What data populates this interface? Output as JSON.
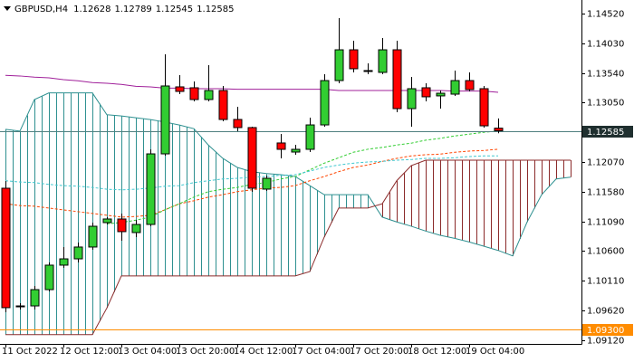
{
  "chart_data": {
    "type": "candlestick",
    "title": "GBPUSD,H4",
    "title_values": [
      1.12628,
      1.12789,
      1.12545,
      1.12585
    ],
    "categories": [
      "11 Oct 2022",
      null,
      null,
      null,
      "12 Oct 12:00",
      null,
      null,
      null,
      "13 Oct 04:00",
      null,
      null,
      null,
      "13 Oct 20:00",
      null,
      null,
      null,
      "14 Oct 12:00",
      null,
      null,
      null,
      "17 Oct 04:00",
      null,
      null,
      null,
      "17 Oct 20:00",
      null,
      null,
      null,
      "18 Oct 12:00",
      null,
      null,
      null,
      "19 Oct 04:00",
      null,
      null,
      null,
      null,
      null,
      null,
      null
    ],
    "open": [
      1.11637,
      1.09694,
      1.09694,
      1.09963,
      1.10367,
      1.10471,
      1.10666,
      1.11069,
      1.11129,
      1.10905,
      1.11039,
      1.12204,
      1.1331,
      1.13295,
      1.13101,
      1.1325,
      1.12772,
      1.12638,
      1.11622,
      1.12384,
      1.12234,
      1.12279,
      1.12682,
      1.13414,
      1.13922,
      1.13579,
      1.13549,
      1.13922,
      1.12951,
      1.13295,
      1.13161,
      1.1319,
      1.13414,
      1.1328,
      1.12628,
      null,
      null,
      null,
      null,
      null
    ],
    "high": [
      1.11756,
      1.09739,
      1.10023,
      1.10412,
      1.10666,
      1.1074,
      1.11069,
      1.11159,
      1.11218,
      1.11114,
      1.12279,
      1.13848,
      1.13504,
      1.134,
      1.13668,
      1.13325,
      1.12981,
      1.12653,
      1.11846,
      1.12533,
      1.12354,
      1.12802,
      1.13519,
      1.14445,
      1.14072,
      1.13698,
      1.14117,
      1.14072,
      1.13474,
      1.1337,
      1.1325,
      1.13579,
      1.13549,
      1.13325,
      1.12789,
      null,
      null,
      null,
      null,
      null
    ],
    "low": [
      1.0959,
      1.09635,
      1.09635,
      1.09933,
      1.10322,
      1.10412,
      1.10621,
      1.11039,
      1.1077,
      1.1083,
      1.11009,
      1.12174,
      1.1319,
      1.13071,
      1.13071,
      1.12742,
      1.12578,
      1.11577,
      1.11592,
      1.1213,
      1.12189,
      1.12234,
      1.12653,
      1.1337,
      1.13549,
      1.13519,
      1.13519,
      1.12892,
      1.12653,
      1.13071,
      1.12951,
      1.13161,
      1.13235,
      1.12638,
      1.12545,
      null,
      null,
      null,
      null,
      null
    ],
    "close": [
      1.09665,
      1.09694,
      1.09963,
      1.10367,
      1.10471,
      1.10666,
      1.11009,
      1.11129,
      1.1092,
      1.11039,
      1.12204,
      1.13325,
      1.13235,
      1.13101,
      1.1325,
      1.12772,
      1.12638,
      1.11637,
      1.11801,
      1.12279,
      1.12279,
      1.12682,
      1.13414,
      1.13922,
      1.13609,
      1.13579,
      1.13922,
      1.12951,
      1.1328,
      1.13146,
      1.13205,
      1.13414,
      1.13265,
      1.12667,
      1.12585,
      null,
      null,
      null,
      null,
      null
    ],
    "up_color": "#32cd32",
    "down_color": "#ff0000",
    "overlays": [
      {
        "color": "#a0209a",
        "dashed": false,
        "values": [
          1.135,
          1.1349,
          1.1347,
          1.1346,
          1.1343,
          1.1341,
          1.1338,
          1.1337,
          1.1335,
          1.1332,
          1.1331,
          1.1329,
          1.1329,
          1.1328,
          1.1328,
          1.1328,
          1.1327,
          1.1327,
          1.1327,
          1.1327,
          1.1327,
          1.1327,
          1.1327,
          1.1325,
          1.1325,
          1.1325,
          1.1325,
          1.1325,
          1.1325,
          1.1325,
          1.1325,
          1.1324,
          1.1324,
          1.1324,
          1.1322,
          null,
          null,
          null,
          null,
          null
        ]
      },
      {
        "color": "#ff4500",
        "dashed": true,
        "values": [
          1.1138,
          1.1135,
          1.1134,
          1.1131,
          1.1128,
          1.1125,
          1.1122,
          1.1119,
          1.1116,
          1.1117,
          1.1119,
          1.1128,
          1.1138,
          1.1143,
          1.1149,
          1.1153,
          1.1158,
          1.1161,
          1.1164,
          1.1165,
          1.1168,
          1.1176,
          1.1183,
          1.1191,
          1.1198,
          1.1202,
          1.1208,
          1.1213,
          1.1217,
          1.1219,
          1.122,
          1.1223,
          1.1225,
          1.1226,
          1.1228,
          null,
          null,
          null,
          null,
          null
        ]
      },
      {
        "color": "#32cd32",
        "dashed": true,
        "values": [
          null,
          null,
          null,
          null,
          null,
          null,
          null,
          1.1105,
          1.1107,
          1.1111,
          1.1116,
          1.1128,
          1.1138,
          1.1149,
          1.1158,
          1.1162,
          1.1165,
          1.117,
          1.1173,
          1.1179,
          1.1183,
          1.1194,
          1.1205,
          1.1214,
          1.1223,
          1.1228,
          1.1231,
          1.1235,
          1.1238,
          1.1243,
          1.1246,
          1.125,
          1.1253,
          1.1256,
          1.1258,
          null,
          null,
          null,
          null,
          null
        ]
      },
      {
        "color": "#40c8d0",
        "dashed": true,
        "values": [
          1.1176,
          1.1174,
          1.1173,
          1.117,
          1.1168,
          1.1167,
          1.1165,
          1.1162,
          1.1161,
          1.1162,
          1.1164,
          1.1167,
          1.1168,
          1.1173,
          1.1176,
          1.1179,
          1.118,
          1.1182,
          1.1183,
          1.1185,
          1.1186,
          1.1192,
          1.1198,
          1.1202,
          1.1205,
          1.1207,
          1.1208,
          1.121,
          1.1211,
          1.1213,
          1.1213,
          1.1214,
          1.1216,
          1.1217,
          1.1217,
          null,
          null,
          null,
          null,
          null
        ]
      }
    ],
    "cloud": {
      "span_a": {
        "color": "#2e9090",
        "values": [
          1.1261,
          1.1258,
          1.131,
          1.1321,
          1.1321,
          1.1321,
          1.1321,
          1.1285,
          1.1283,
          1.128,
          1.1277,
          1.1273,
          1.1268,
          1.1262,
          1.1235,
          1.1213,
          1.1198,
          1.1191,
          1.1188,
          1.1186,
          1.1183,
          1.1168,
          1.1153,
          1.1153,
          1.1153,
          1.1153,
          1.1116,
          1.1108,
          1.1101,
          1.1093,
          1.1086,
          1.1081,
          1.1075,
          1.1068,
          1.1061,
          1.1052,
          1.1108,
          1.1153,
          1.1179,
          1.1182
        ]
      },
      "span_b": {
        "color": "#8b2a2a",
        "values": [
          1.0922,
          1.0922,
          1.0922,
          1.0922,
          1.0922,
          1.0922,
          1.0922,
          1.0966,
          1.1019,
          1.1019,
          1.1019,
          1.1019,
          1.1019,
          1.1019,
          1.1019,
          1.1019,
          1.1019,
          1.1019,
          1.1019,
          1.1019,
          1.1019,
          1.1026,
          1.1083,
          1.1131,
          1.1131,
          1.1131,
          1.1138,
          1.1176,
          1.1201,
          1.121,
          1.121,
          1.121,
          1.121,
          1.121,
          1.121,
          1.121,
          1.121,
          1.121,
          1.121,
          1.121
        ]
      }
    },
    "price_lines": [
      {
        "value": 1.12585,
        "line_color": "#4f7f7f",
        "box_color": "#1f2f2f",
        "text_color": "#ffffff"
      },
      {
        "value": 1.093,
        "label": "1.09300",
        "line_color": "#ff8c00",
        "box_color": "#ff8c00",
        "text_color": "#ffffff"
      }
    ],
    "ylim": [
      1.09067,
      1.14744
    ],
    "yticks": [
      {
        "value": 1.1452,
        "label": "1.14520"
      },
      {
        "value": 1.1403,
        "label": "1.14030"
      },
      {
        "value": 1.1354,
        "label": "1.13540"
      },
      {
        "value": 1.1305,
        "label": "1.13050"
      },
      {
        "value": 1.1207,
        "label": "1.12070"
      },
      {
        "value": 1.1158,
        "label": "1.11580"
      },
      {
        "value": 1.1109,
        "label": "1.11090"
      },
      {
        "value": 1.106,
        "label": "1.10600"
      },
      {
        "value": 1.1011,
        "label": "1.10110"
      },
      {
        "value": 1.0962,
        "label": "1.09620"
      },
      {
        "value": 1.0912,
        "label": "1.09120"
      }
    ]
  }
}
